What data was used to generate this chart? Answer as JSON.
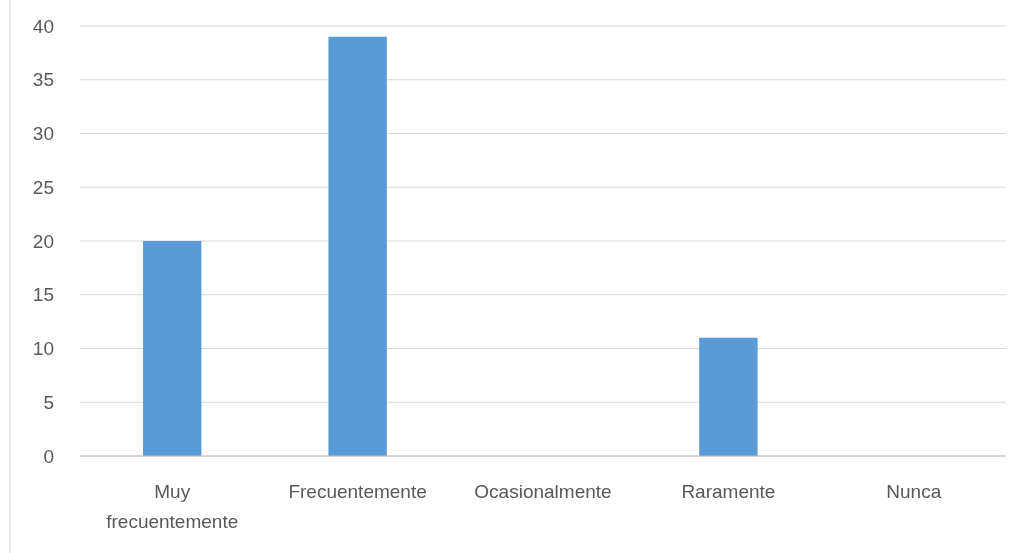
{
  "chart_data": {
    "type": "bar",
    "categories": [
      "Muy frecuentemente",
      "Frecuentemente",
      "Ocasionalmente",
      "Raramente",
      "Nunca"
    ],
    "values": [
      20,
      39,
      0,
      11,
      0
    ],
    "color": "#5b9bd5",
    "ylim": [
      0,
      40
    ],
    "yticks": [
      0,
      5,
      10,
      15,
      20,
      25,
      30,
      35,
      40
    ],
    "grid": "y"
  }
}
